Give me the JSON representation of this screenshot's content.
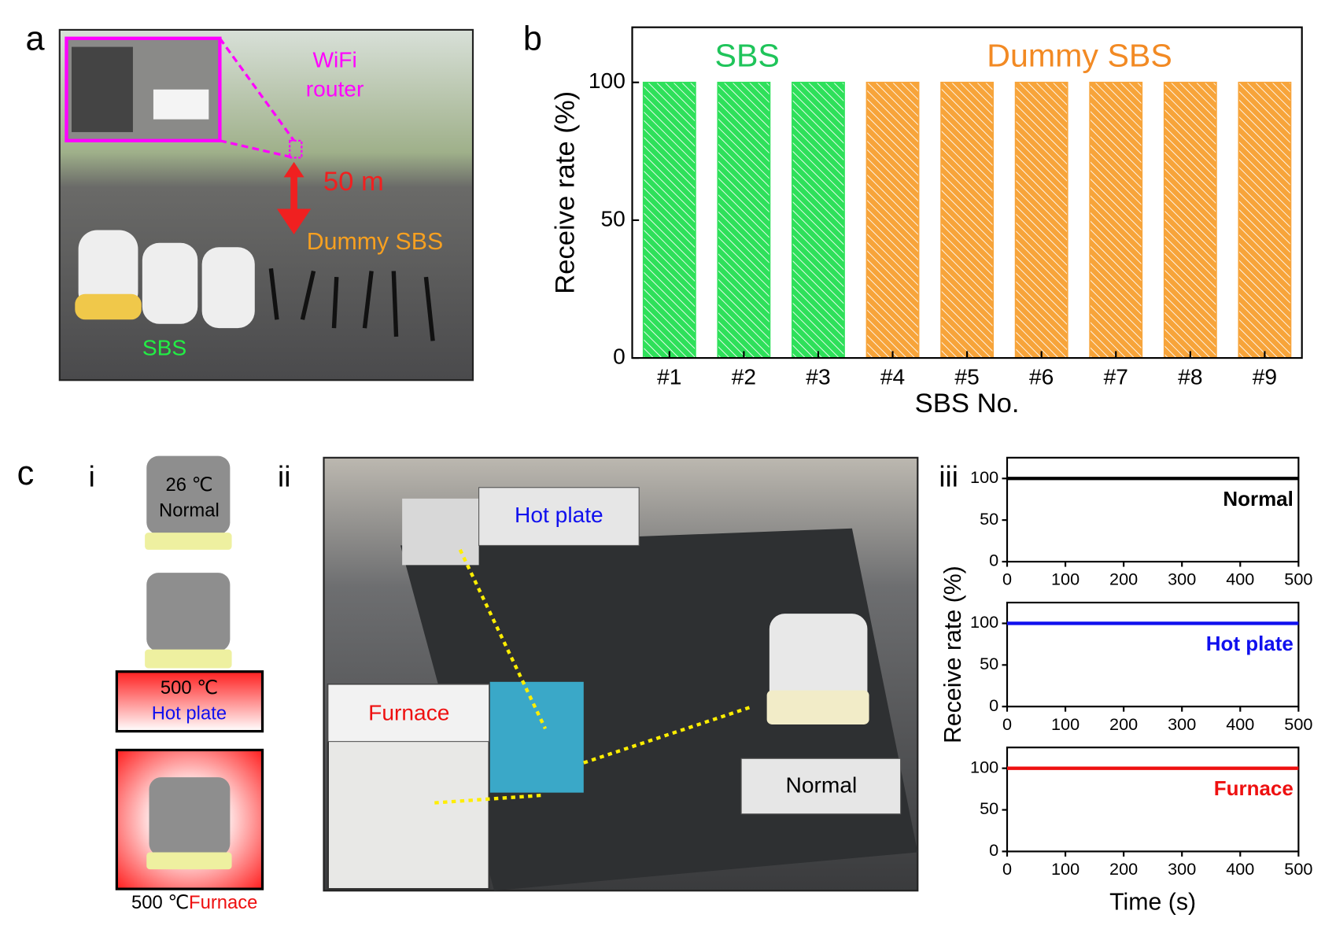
{
  "panel_labels": [
    "a",
    "b",
    "c",
    "i",
    "ii",
    "iii"
  ],
  "photo_a": {
    "router_label": [
      "WiFi",
      "router"
    ],
    "distance": "50 m",
    "dummy_label": "Dummy SBS",
    "sbs_label": "SBS"
  },
  "panel_c_i": {
    "normal_temp": "26 ℃",
    "normal_label": "Normal",
    "hot_temp": "500 ℃",
    "hot_label": "Hot plate",
    "furnace_temp": "500 ℃",
    "furnace_label": "Furnace"
  },
  "photo_c_ii": {
    "hot_label": "Hot plate",
    "furnace_label": "Furnace",
    "normal_label": "Normal"
  },
  "chart_data": [
    {
      "type": "bar",
      "xlabel": "SBS No.",
      "ylabel": "Receive rate (%)",
      "categories": [
        "#1",
        "#2",
        "#3",
        "#4",
        "#5",
        "#6",
        "#7",
        "#8",
        "#9"
      ],
      "values": [
        100,
        100,
        100,
        100,
        100,
        100,
        100,
        100,
        100
      ],
      "colors": [
        "#2ee05a",
        "#2ee05a",
        "#2ee05a",
        "#f7a43a",
        "#f7a43a",
        "#f7a43a",
        "#f7a43a",
        "#f7a43a",
        "#f7a43a"
      ],
      "ylim": [
        0,
        120
      ],
      "yticks": [
        0,
        50,
        100
      ],
      "annotations": [
        {
          "text": "SBS",
          "color": "#1fc45a"
        },
        {
          "text": "Dummy SBS",
          "color": "#f28a24"
        }
      ]
    },
    {
      "type": "line",
      "label": "Normal",
      "color": "#000000",
      "x": [
        0,
        500
      ],
      "values": [
        100,
        100
      ],
      "xlim": [
        0,
        500
      ],
      "xticks": [
        0,
        100,
        200,
        300,
        400,
        500
      ],
      "ylim": [
        0,
        125
      ],
      "yticks": [
        0,
        50,
        100
      ]
    },
    {
      "type": "line",
      "label": "Hot plate",
      "color": "#1010ee",
      "x": [
        0,
        500
      ],
      "values": [
        100,
        100
      ],
      "xlim": [
        0,
        500
      ],
      "xticks": [
        0,
        100,
        200,
        300,
        400,
        500
      ],
      "ylim": [
        0,
        125
      ],
      "yticks": [
        0,
        50,
        100
      ],
      "ylabel": "Receive rate (%)"
    },
    {
      "type": "line",
      "label": "Furnace",
      "color": "#ee1010",
      "x": [
        0,
        500
      ],
      "values": [
        100,
        100
      ],
      "xlim": [
        0,
        500
      ],
      "xticks": [
        0,
        100,
        200,
        300,
        400,
        500
      ],
      "ylim": [
        0,
        125
      ],
      "yticks": [
        0,
        50,
        100
      ],
      "xlabel": "Time (s)"
    }
  ]
}
